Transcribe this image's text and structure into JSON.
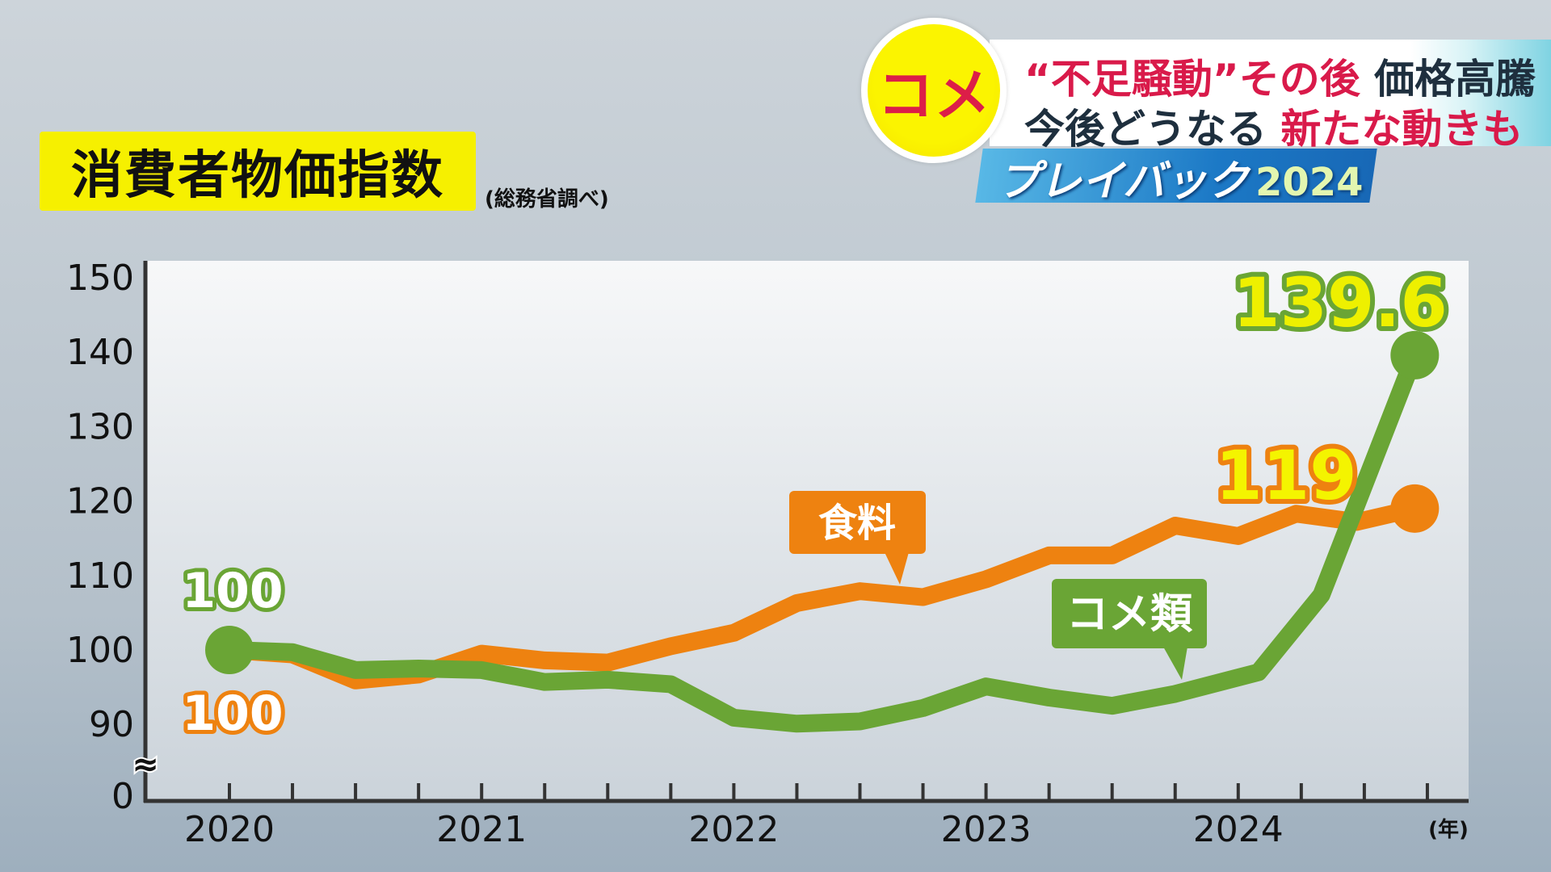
{
  "header": {
    "badge": "コメ",
    "headline_line1_red": "“不足騒動”その後",
    "headline_line1_dark": "価格高騰",
    "headline_line2_dark": "今後どうなる",
    "headline_line2_red": "新たな動きも",
    "segment_title": "プレイバック",
    "segment_year": "2024"
  },
  "colors": {
    "food": "#ee8210",
    "rice": "#6aa535",
    "title_bg": "#f6f000",
    "badge_text": "#dc1e48"
  },
  "chart_data": {
    "type": "line",
    "title": "消費者物価指数",
    "source": "(総務省調べ)",
    "xlabel": "(年)",
    "x_ticks": [
      "2020",
      "2021",
      "2022",
      "2023",
      "2024"
    ],
    "y_ticks": [
      "150",
      "140",
      "130",
      "120",
      "110",
      "100",
      "90",
      "0"
    ],
    "y_axis_break": "≈",
    "ylim": [
      90,
      150
    ],
    "xlim": [
      2019.67,
      2025.0
    ],
    "grid": false,
    "series": [
      {
        "name": "食料",
        "color": "#ee8210",
        "x": [
          2020,
          2020.25,
          2020.5,
          2020.75,
          2021,
          2021.25,
          2021.5,
          2021.75,
          2022,
          2022.25,
          2022.5,
          2022.75,
          2023,
          2023.25,
          2023.5,
          2023.75,
          2024,
          2024.23,
          2024.47,
          2024.7
        ],
        "values": [
          100,
          99.4,
          95.9,
          96.7,
          99.5,
          98.6,
          98.3,
          100.5,
          102.3,
          106.3,
          107.9,
          107.1,
          109.5,
          112.7,
          112.7,
          116.7,
          115.3,
          118.3,
          117.2,
          119
        ],
        "start_label": "100",
        "end_label": "119"
      },
      {
        "name": "コメ類",
        "color": "#6aa535",
        "x": [
          2020,
          2020.25,
          2020.5,
          2020.75,
          2021,
          2021.25,
          2021.5,
          2021.75,
          2022,
          2022.25,
          2022.5,
          2022.75,
          2023,
          2023.25,
          2023.5,
          2023.75,
          2024.08,
          2024.33,
          2024.7
        ],
        "values": [
          100,
          99.7,
          97.3,
          97.5,
          97.3,
          95.7,
          96,
          95.4,
          90.9,
          90.1,
          90.4,
          92.2,
          95.1,
          93.6,
          92.5,
          94.1,
          97,
          107.4,
          139.6
        ],
        "start_label": "100",
        "end_label": "139.6"
      }
    ]
  }
}
